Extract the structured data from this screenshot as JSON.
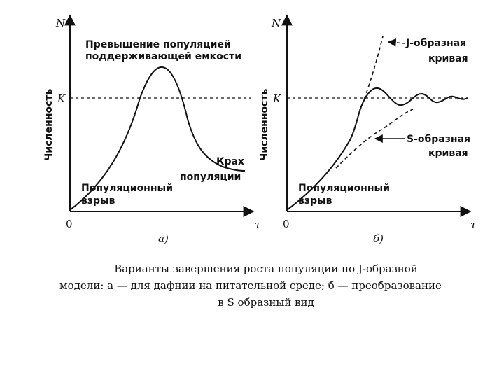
{
  "panel_a": {
    "y_axis": "N",
    "x_axis": "τ",
    "origin": "0",
    "k_label": "K",
    "ylabel": "Численность",
    "overshoot_line1": "Превышение популяцией",
    "overshoot_line2": "поддерживающей емкости",
    "crash_line1": "Крах",
    "crash_line2": "популяции",
    "boom_line1": "Популяционный",
    "boom_line2": "взрыв",
    "panel_label": "а)"
  },
  "panel_b": {
    "y_axis": "N",
    "x_axis": "τ",
    "origin": "0",
    "k_label": "K",
    "ylabel": "Численность",
    "j_line1": "J-образная",
    "j_line2": "кривая",
    "s_line1": "S-образная",
    "s_line2": "кривая",
    "boom_line1": "Популяционный",
    "boom_line2": "взрыв",
    "panel_label": "б)"
  },
  "caption": {
    "line1": "Варианты завершения роста популяции по J-образной",
    "line2": "модели: а — для дафнии на питательной среде; б — преобразование",
    "line3": "в S образный вид"
  },
  "colors": {
    "ink": "#111111",
    "background": "#ffffff"
  }
}
